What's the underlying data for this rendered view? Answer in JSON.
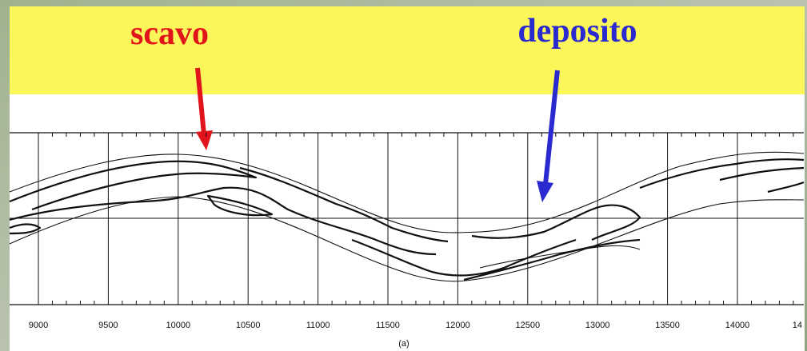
{
  "annotations": {
    "left": "scavo",
    "right": "deposito"
  },
  "axis": {
    "labels": [
      "9000",
      "9500",
      "10000",
      "10500",
      "11000",
      "11500",
      "12000",
      "12500",
      "13000",
      "13500",
      "14000",
      "14"
    ]
  },
  "caption": "(a)"
}
